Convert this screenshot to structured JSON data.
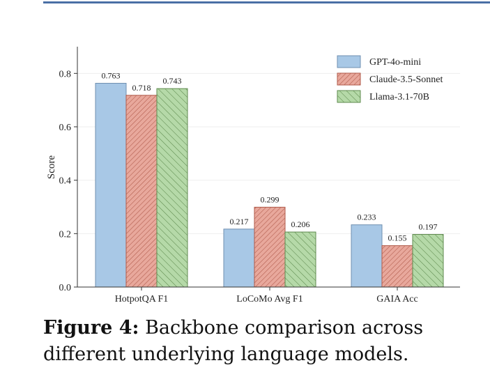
{
  "figure": {
    "label": "Figure 4:",
    "text": "Backbone comparison across different underlying language models."
  },
  "chart_data": {
    "type": "bar",
    "categories": [
      "HotpotQA F1",
      "LoCoMo Avg F1",
      "GAIA Acc"
    ],
    "series": [
      {
        "name": "GPT-4o-mini",
        "values": [
          0.763,
          0.217,
          0.233
        ],
        "color": "#a8c8e6",
        "edge": "#6f8fb0",
        "hatch": "none"
      },
      {
        "name": "Claude-3.5-Sonnet",
        "values": [
          0.718,
          0.299,
          0.155
        ],
        "color": "#e8a89c",
        "edge": "#b05a4a",
        "hatch": "forward"
      },
      {
        "name": "Llama-3.1-70B",
        "values": [
          0.743,
          0.206,
          0.197
        ],
        "color": "#b5d9a8",
        "edge": "#5e8a4e",
        "hatch": "back"
      }
    ],
    "title": "",
    "xlabel": "",
    "ylabel": "Score",
    "ylim": [
      0,
      0.9
    ],
    "yticks": [
      "0.0",
      "0.2",
      "0.4",
      "0.6",
      "0.8"
    ],
    "ytick_values": [
      0,
      0.2,
      0.4,
      0.6,
      0.8
    ],
    "grid": true,
    "legend": "top-right"
  }
}
